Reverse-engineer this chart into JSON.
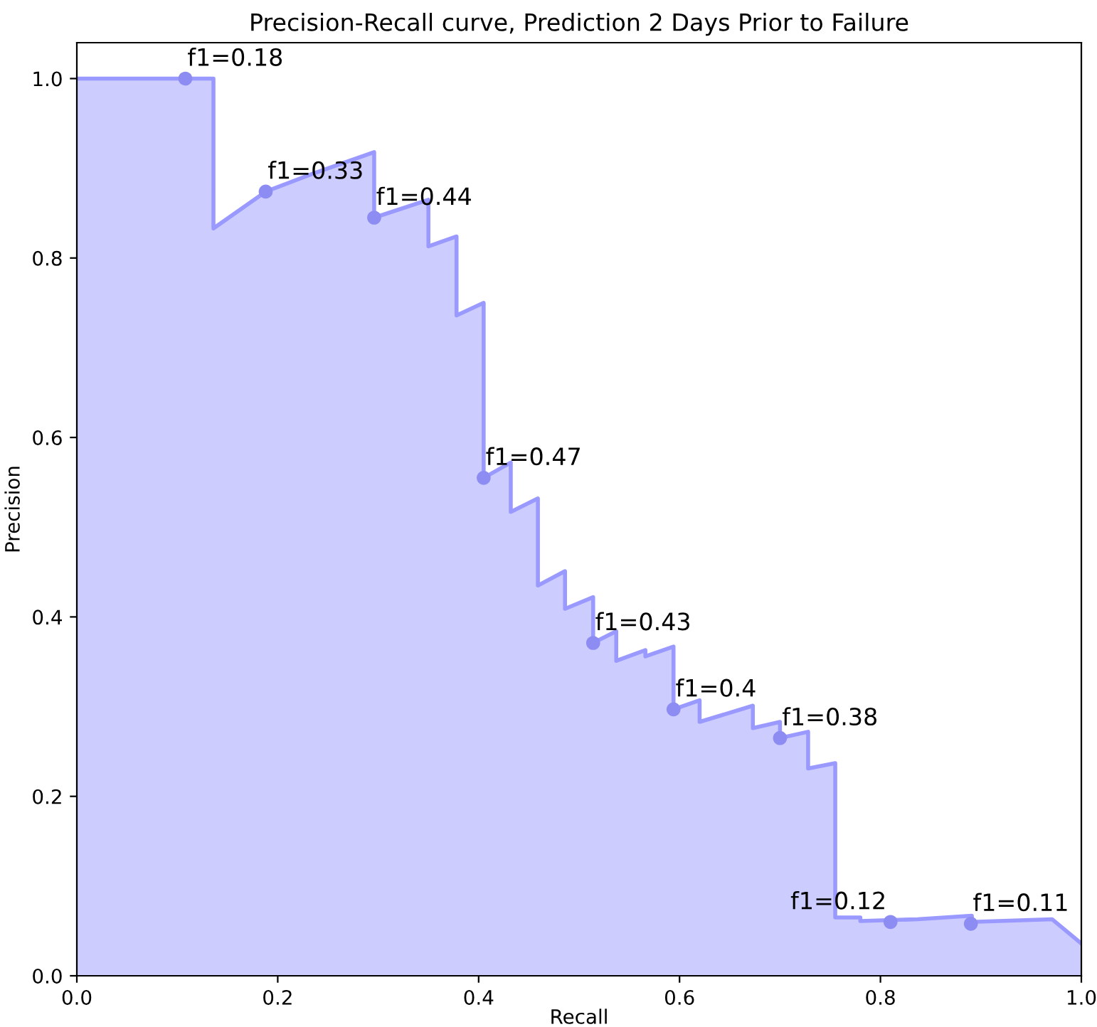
{
  "chart_data": {
    "type": "area",
    "title": "Precision-Recall curve, Prediction 2 Days Prior to Failure",
    "xlabel": "Recall",
    "ylabel": "Precision",
    "xlim": [
      0.0,
      1.0
    ],
    "ylim": [
      0.0,
      1.04
    ],
    "xticks": [
      {
        "value": 0.0,
        "label": "0.0"
      },
      {
        "value": 0.2,
        "label": "0.2"
      },
      {
        "value": 0.4,
        "label": "0.4"
      },
      {
        "value": 0.6,
        "label": "0.6"
      },
      {
        "value": 0.8,
        "label": "0.8"
      },
      {
        "value": 1.0,
        "label": "1.0"
      }
    ],
    "yticks": [
      {
        "value": 0.0,
        "label": "0.0"
      },
      {
        "value": 0.2,
        "label": "0.2"
      },
      {
        "value": 0.4,
        "label": "0.4"
      },
      {
        "value": 0.6,
        "label": "0.6"
      },
      {
        "value": 0.8,
        "label": "0.8"
      },
      {
        "value": 1.0,
        "label": "1.0"
      }
    ],
    "grid": false,
    "legend": false,
    "series": [
      {
        "type": "area",
        "color": "#9999ff",
        "x": [
          0.0,
          0.136,
          0.136,
          0.188,
          0.235,
          0.296,
          0.296,
          0.35,
          0.35,
          0.378,
          0.378,
          0.405,
          0.405,
          0.432,
          0.432,
          0.459,
          0.459,
          0.486,
          0.486,
          0.514,
          0.514,
          0.537,
          0.537,
          0.566,
          0.566,
          0.594,
          0.594,
          0.62,
          0.62,
          0.673,
          0.673,
          0.7,
          0.7,
          0.728,
          0.728,
          0.755,
          0.755,
          0.78,
          0.78,
          0.837,
          0.891,
          0.891,
          0.971,
          1.0
        ],
        "values": [
          1.0,
          1.0,
          0.833,
          0.874,
          0.894,
          0.918,
          0.845,
          0.865,
          0.813,
          0.824,
          0.736,
          0.75,
          0.555,
          0.572,
          0.517,
          0.532,
          0.435,
          0.451,
          0.409,
          0.422,
          0.371,
          0.384,
          0.351,
          0.363,
          0.356,
          0.367,
          0.297,
          0.307,
          0.283,
          0.301,
          0.276,
          0.283,
          0.265,
          0.272,
          0.231,
          0.237,
          0.065,
          0.065,
          0.061,
          0.063,
          0.067,
          0.06,
          0.063,
          0.036
        ]
      },
      {
        "type": "scatter",
        "color": "#8c8cf2",
        "marker": "circle",
        "x": [
          0.108,
          0.188,
          0.296,
          0.405,
          0.514,
          0.594,
          0.7,
          0.81,
          0.89
        ],
        "values": [
          1.0,
          0.874,
          0.845,
          0.555,
          0.371,
          0.297,
          0.265,
          0.06,
          0.058
        ]
      }
    ],
    "annotations": [
      {
        "text": "f1=0.18",
        "x": 0.108,
        "y": 1.0
      },
      {
        "text": "f1=0.33",
        "x": 0.188,
        "y": 0.874
      },
      {
        "text": "f1=0.44",
        "x": 0.296,
        "y": 0.845
      },
      {
        "text": "f1=0.47",
        "x": 0.405,
        "y": 0.555
      },
      {
        "text": "f1=0.43",
        "x": 0.514,
        "y": 0.371
      },
      {
        "text": "f1=0.4",
        "x": 0.594,
        "y": 0.297
      },
      {
        "text": "f1=0.38",
        "x": 0.7,
        "y": 0.265
      },
      {
        "text": "f1=0.12",
        "x": 0.81,
        "y": 0.06
      },
      {
        "text": "f1=0.11",
        "x": 0.89,
        "y": 0.058
      }
    ]
  }
}
